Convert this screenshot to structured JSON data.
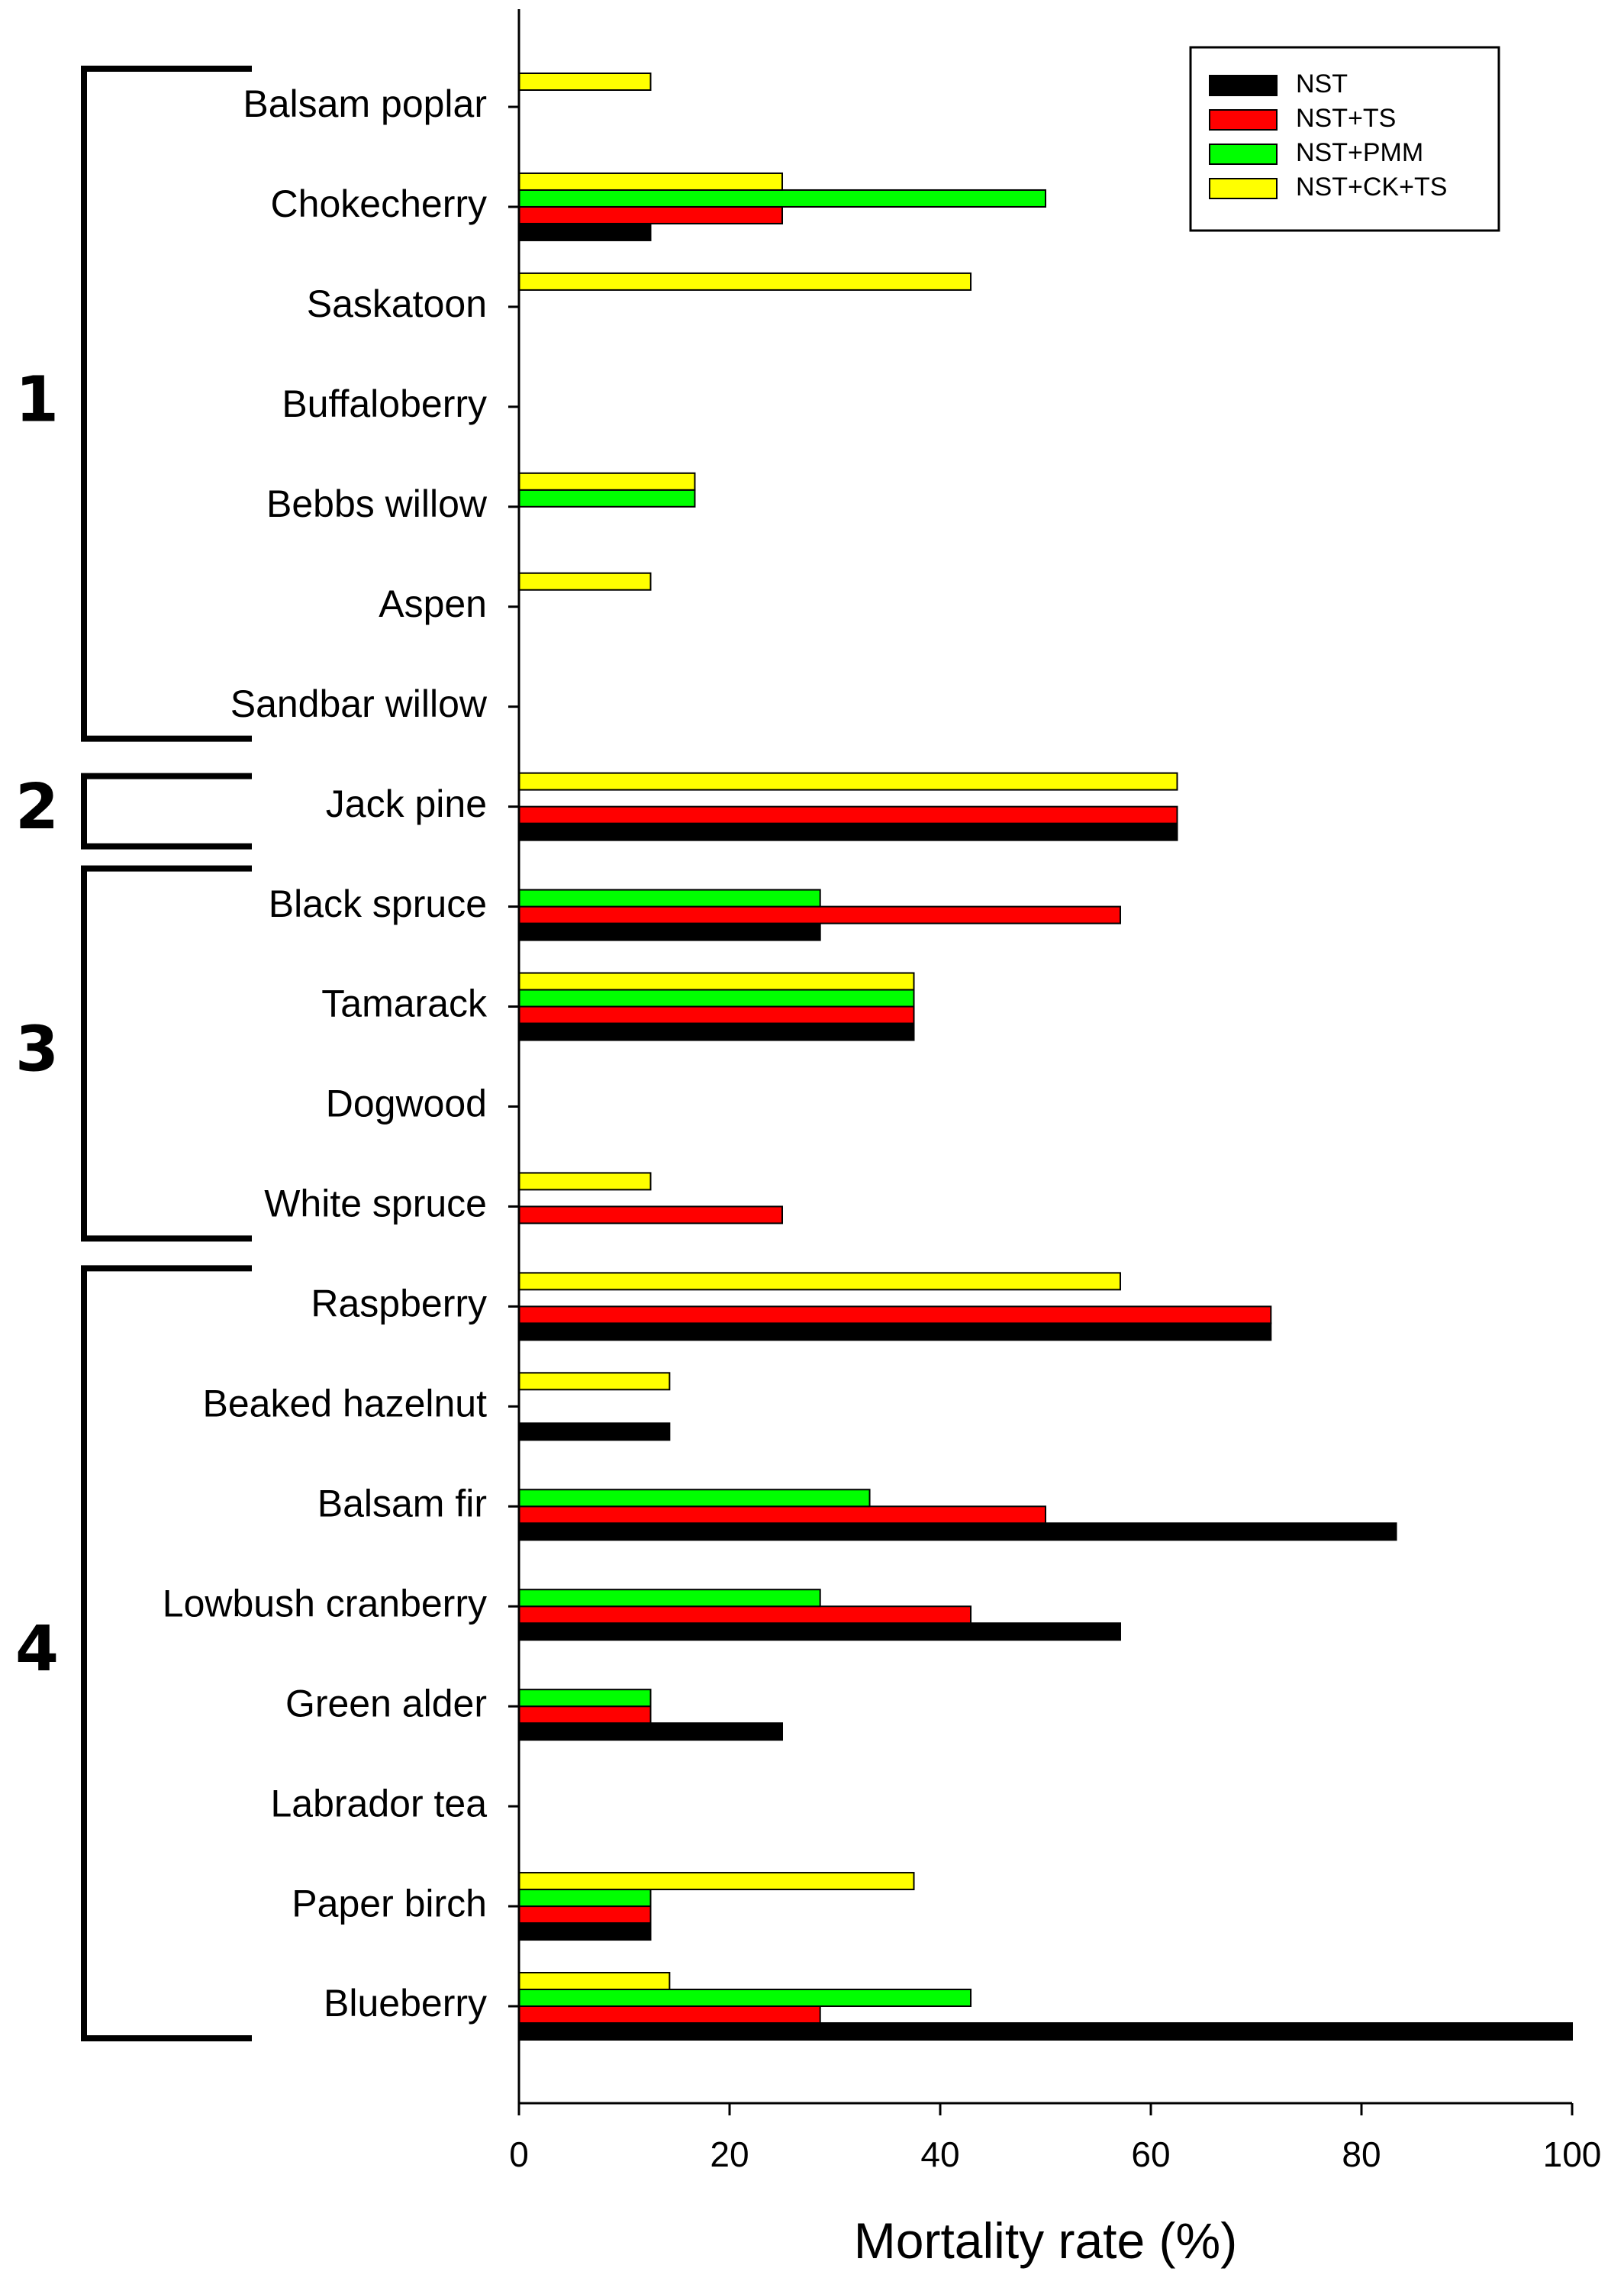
{
  "chart_data": {
    "type": "bar",
    "orientation": "horizontal",
    "xlabel": "Mortality rate (%)",
    "xlim": [
      0,
      100
    ],
    "xticks": [
      0,
      20,
      40,
      60,
      80,
      100
    ],
    "legend_position": "top-right",
    "categories": [
      "Balsam poplar",
      "Chokecherry",
      "Saskatoon",
      "Buffaloberry",
      "Bebbs willow",
      "Aspen",
      "Sandbar willow",
      "Jack pine",
      "Black spruce",
      "Tamarack",
      "Dogwood",
      "White spruce",
      "Raspberry",
      "Beaked hazelnut",
      "Balsam fir",
      "Lowbush cranberry",
      "Green alder",
      "Labrador tea",
      "Paper birch",
      "Blueberry"
    ],
    "series": [
      {
        "name": "NST",
        "color": "#000000",
        "values": [
          0,
          12.5,
          0,
          0,
          0,
          0,
          0,
          62.5,
          28.6,
          37.5,
          0,
          0,
          71.4,
          14.3,
          83.3,
          57.1,
          25,
          0,
          12.5,
          100
        ]
      },
      {
        "name": "NST+TS",
        "color": "#ff0000",
        "values": [
          0,
          25,
          0,
          0,
          0,
          0,
          0,
          62.5,
          57.1,
          37.5,
          0,
          25,
          71.4,
          0,
          50,
          42.9,
          12.5,
          0,
          12.5,
          28.6
        ]
      },
      {
        "name": "NST+PMM",
        "color": "#00ff00",
        "values": [
          0,
          50,
          0,
          0,
          16.7,
          0,
          0,
          0,
          28.6,
          37.5,
          0,
          0,
          0,
          0,
          33.3,
          28.6,
          12.5,
          0,
          12.5,
          42.9
        ]
      },
      {
        "name": "NST+CK+TS",
        "color": "#ffff00",
        "values": [
          12.5,
          25,
          42.9,
          0,
          16.7,
          12.5,
          0,
          62.5,
          0,
          37.5,
          0,
          12.5,
          57.1,
          14.3,
          0,
          0,
          0,
          0,
          37.5,
          14.3
        ]
      }
    ],
    "groups": [
      {
        "label": "1",
        "first": 0,
        "last": 6
      },
      {
        "label": "2",
        "first": 7,
        "last": 7
      },
      {
        "label": "3",
        "first": 8,
        "last": 11
      },
      {
        "label": "4",
        "first": 12,
        "last": 19
      }
    ]
  }
}
